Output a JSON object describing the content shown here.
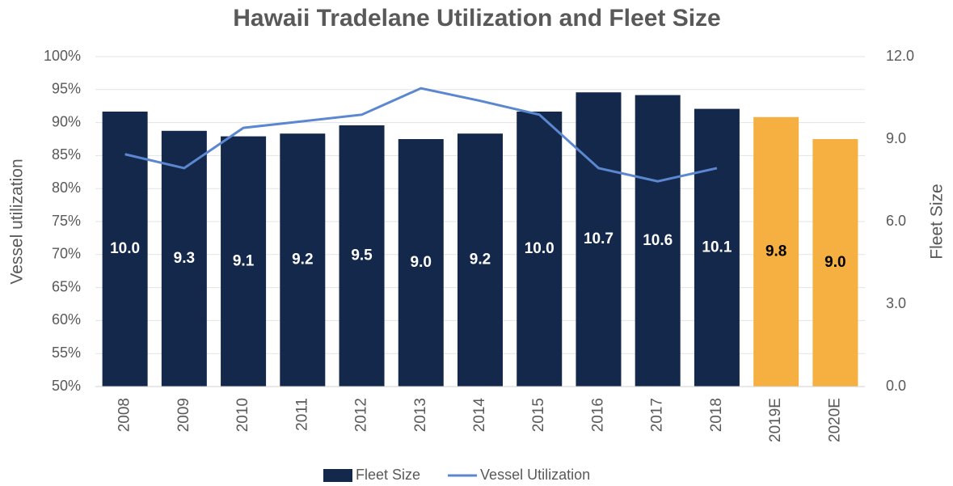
{
  "chart_data": {
    "type": "bar_line",
    "title": "Hawaii Tradelane Utilization and Fleet Size",
    "ylabel": "Vessel utilization",
    "y2label": "Fleet Size",
    "categories": [
      "2008",
      "2009",
      "2010",
      "2011",
      "2012",
      "2013",
      "2014",
      "2015",
      "2016",
      "2017",
      "2018",
      "2019E",
      "2020E"
    ],
    "series": [
      {
        "name": "Fleet Size",
        "kind": "bar",
        "axis": "y2",
        "color": "#14284b",
        "colors": [
          "#14284b",
          "#14284b",
          "#14284b",
          "#14284b",
          "#14284b",
          "#14284b",
          "#14284b",
          "#14284b",
          "#14284b",
          "#14284b",
          "#14284b",
          "#f5b041",
          "#f5b041"
        ],
        "label_colors": [
          "#ffffff",
          "#ffffff",
          "#ffffff",
          "#ffffff",
          "#ffffff",
          "#ffffff",
          "#ffffff",
          "#ffffff",
          "#ffffff",
          "#ffffff",
          "#ffffff",
          "#000000",
          "#000000"
        ],
        "values": [
          10.0,
          9.3,
          9.1,
          9.2,
          9.5,
          9.0,
          9.2,
          10.0,
          10.7,
          10.6,
          10.1,
          9.8,
          9.0
        ],
        "value_labels": [
          "10.0",
          "9.3",
          "9.1",
          "9.2",
          "9.5",
          "9.0",
          "9.2",
          "10.0",
          "10.7",
          "10.6",
          "10.1",
          "9.8",
          "9.0"
        ]
      },
      {
        "name": "Vessel Utilization",
        "kind": "line",
        "axis": "y",
        "color": "#5b87d0",
        "values": [
          85.2,
          83.1,
          89.2,
          90.2,
          91.2,
          95.2,
          93.3,
          91.2,
          83.1,
          81.1,
          83.1,
          null,
          null
        ]
      }
    ],
    "ylim": [
      50,
      100
    ],
    "yticks": [
      {
        "value": 50,
        "label": "50%"
      },
      {
        "value": 55,
        "label": "55%"
      },
      {
        "value": 60,
        "label": "60%"
      },
      {
        "value": 65,
        "label": "65%"
      },
      {
        "value": 70,
        "label": "70%"
      },
      {
        "value": 75,
        "label": "75%"
      },
      {
        "value": 80,
        "label": "80%"
      },
      {
        "value": 85,
        "label": "85%"
      },
      {
        "value": 90,
        "label": "90%"
      },
      {
        "value": 95,
        "label": "95%"
      },
      {
        "value": 100,
        "label": "100%"
      }
    ],
    "y2lim": [
      0,
      12
    ],
    "y2ticks": [
      {
        "value": 0,
        "label": "0.0"
      },
      {
        "value": 3,
        "label": "3.0"
      },
      {
        "value": 6,
        "label": "6.0"
      },
      {
        "value": 9,
        "label": "9.0"
      },
      {
        "value": 12,
        "label": "12.0"
      }
    ],
    "grid": true,
    "legend": "bottom"
  }
}
